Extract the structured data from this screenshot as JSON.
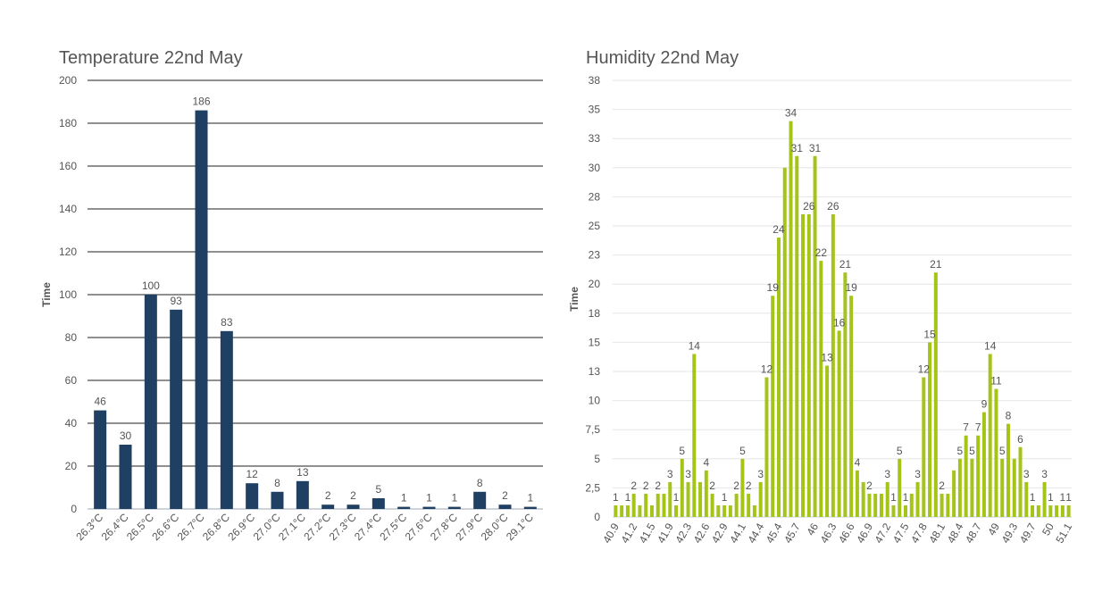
{
  "chart_data": [
    {
      "type": "bar",
      "title": "Temperature 22nd May",
      "ylabel": "Time",
      "xlabel": "",
      "ylim": [
        0,
        200
      ],
      "yticks": [
        0,
        20,
        40,
        60,
        80,
        100,
        120,
        140,
        160,
        180,
        200
      ],
      "grid": "horizontal-dark",
      "color": "#1f3f63",
      "categories": [
        "26.3°C",
        "26.4°C",
        "26.5°C",
        "26.6°C",
        "26.7°C",
        "26.8°C",
        "26.9°C",
        "27.0°C",
        "27.1°C",
        "27.2°C",
        "27.3°C",
        "27.4°C",
        "27.5°C",
        "27.6°C",
        "27.8°C",
        "27.9°C",
        "28.0°C",
        "29.1°C"
      ],
      "values": [
        46,
        30,
        100,
        93,
        186,
        83,
        12,
        8,
        13,
        2,
        2,
        5,
        1,
        1,
        1,
        8,
        2,
        1
      ]
    },
    {
      "type": "bar",
      "title": "Humidity 22nd May",
      "ylabel": "Time",
      "xlabel": "",
      "ylim": [
        0,
        37.5
      ],
      "yticks": [
        0,
        2.5,
        5,
        7.5,
        10,
        12.5,
        15,
        17.5,
        20,
        22.5,
        25,
        27.5,
        30,
        32.5,
        35,
        37.5
      ],
      "ytick_labels": [
        "0",
        "2,5",
        "5",
        "7,5",
        "10",
        "13",
        "15",
        "18",
        "20",
        "23",
        "25",
        "28",
        "30",
        "33",
        "35",
        "38"
      ],
      "grid": "horizontal-light",
      "color": "#a5c41a",
      "tick_labels": [
        "40.9",
        "41.2",
        "41.5",
        "41.9",
        "42.3",
        "42.6",
        "42.9",
        "44.1",
        "44.4",
        "45.4",
        "45.7",
        "46",
        "46.3",
        "46.6",
        "46.9",
        "47.2",
        "47.5",
        "47.8",
        "48.1",
        "48.4",
        "48.7",
        "49",
        "49.3",
        "49.7",
        "50",
        "51.1"
      ],
      "values": [
        1,
        1,
        1,
        2,
        1,
        2,
        1,
        2,
        2,
        3,
        1,
        5,
        3,
        14,
        3,
        4,
        2,
        1,
        1,
        1,
        2,
        5,
        2,
        1,
        3,
        12,
        19,
        24,
        30,
        34,
        31,
        26,
        26,
        31,
        22,
        13,
        26,
        16,
        21,
        19,
        4,
        3,
        2,
        2,
        2,
        3,
        1,
        5,
        1,
        2,
        3,
        12,
        15,
        21,
        2,
        2,
        4,
        5,
        7,
        5,
        7,
        9,
        14,
        11,
        5,
        8,
        5,
        6,
        3,
        1,
        1,
        3,
        1,
        1,
        1,
        1
      ],
      "data_labels": [
        [
          0,
          "1"
        ],
        [
          2,
          "1"
        ],
        [
          3,
          "2"
        ],
        [
          5,
          "2"
        ],
        [
          7,
          "2"
        ],
        [
          9,
          "3"
        ],
        [
          10,
          "1"
        ],
        [
          11,
          "5"
        ],
        [
          12,
          "3"
        ],
        [
          13,
          "14"
        ],
        [
          15,
          "4"
        ],
        [
          16,
          "2"
        ],
        [
          18,
          "1"
        ],
        [
          20,
          "2"
        ],
        [
          21,
          "5"
        ],
        [
          22,
          "2"
        ],
        [
          24,
          "3"
        ],
        [
          25,
          "12"
        ],
        [
          26,
          "19"
        ],
        [
          27,
          "24"
        ],
        [
          29,
          "34"
        ],
        [
          30,
          "31"
        ],
        [
          32,
          "26"
        ],
        [
          33,
          "31"
        ],
        [
          34,
          "22"
        ],
        [
          35,
          "13"
        ],
        [
          36,
          "26"
        ],
        [
          37,
          "16"
        ],
        [
          38,
          "21"
        ],
        [
          39,
          "19"
        ],
        [
          40,
          "4"
        ],
        [
          42,
          "2"
        ],
        [
          45,
          "3"
        ],
        [
          46,
          "1"
        ],
        [
          47,
          "5"
        ],
        [
          48,
          "1"
        ],
        [
          50,
          "3"
        ],
        [
          51,
          "12"
        ],
        [
          52,
          "15"
        ],
        [
          53,
          "21"
        ],
        [
          54,
          "2"
        ],
        [
          57,
          "5"
        ],
        [
          58,
          "7"
        ],
        [
          59,
          "5"
        ],
        [
          60,
          "7"
        ],
        [
          61,
          "9"
        ],
        [
          62,
          "14"
        ],
        [
          63,
          "11"
        ],
        [
          64,
          "5"
        ],
        [
          65,
          "8"
        ],
        [
          67,
          "6"
        ],
        [
          68,
          "3"
        ],
        [
          69,
          "1"
        ],
        [
          71,
          "3"
        ],
        [
          72,
          "1"
        ],
        [
          74,
          "1"
        ],
        [
          75,
          "1"
        ]
      ]
    }
  ]
}
